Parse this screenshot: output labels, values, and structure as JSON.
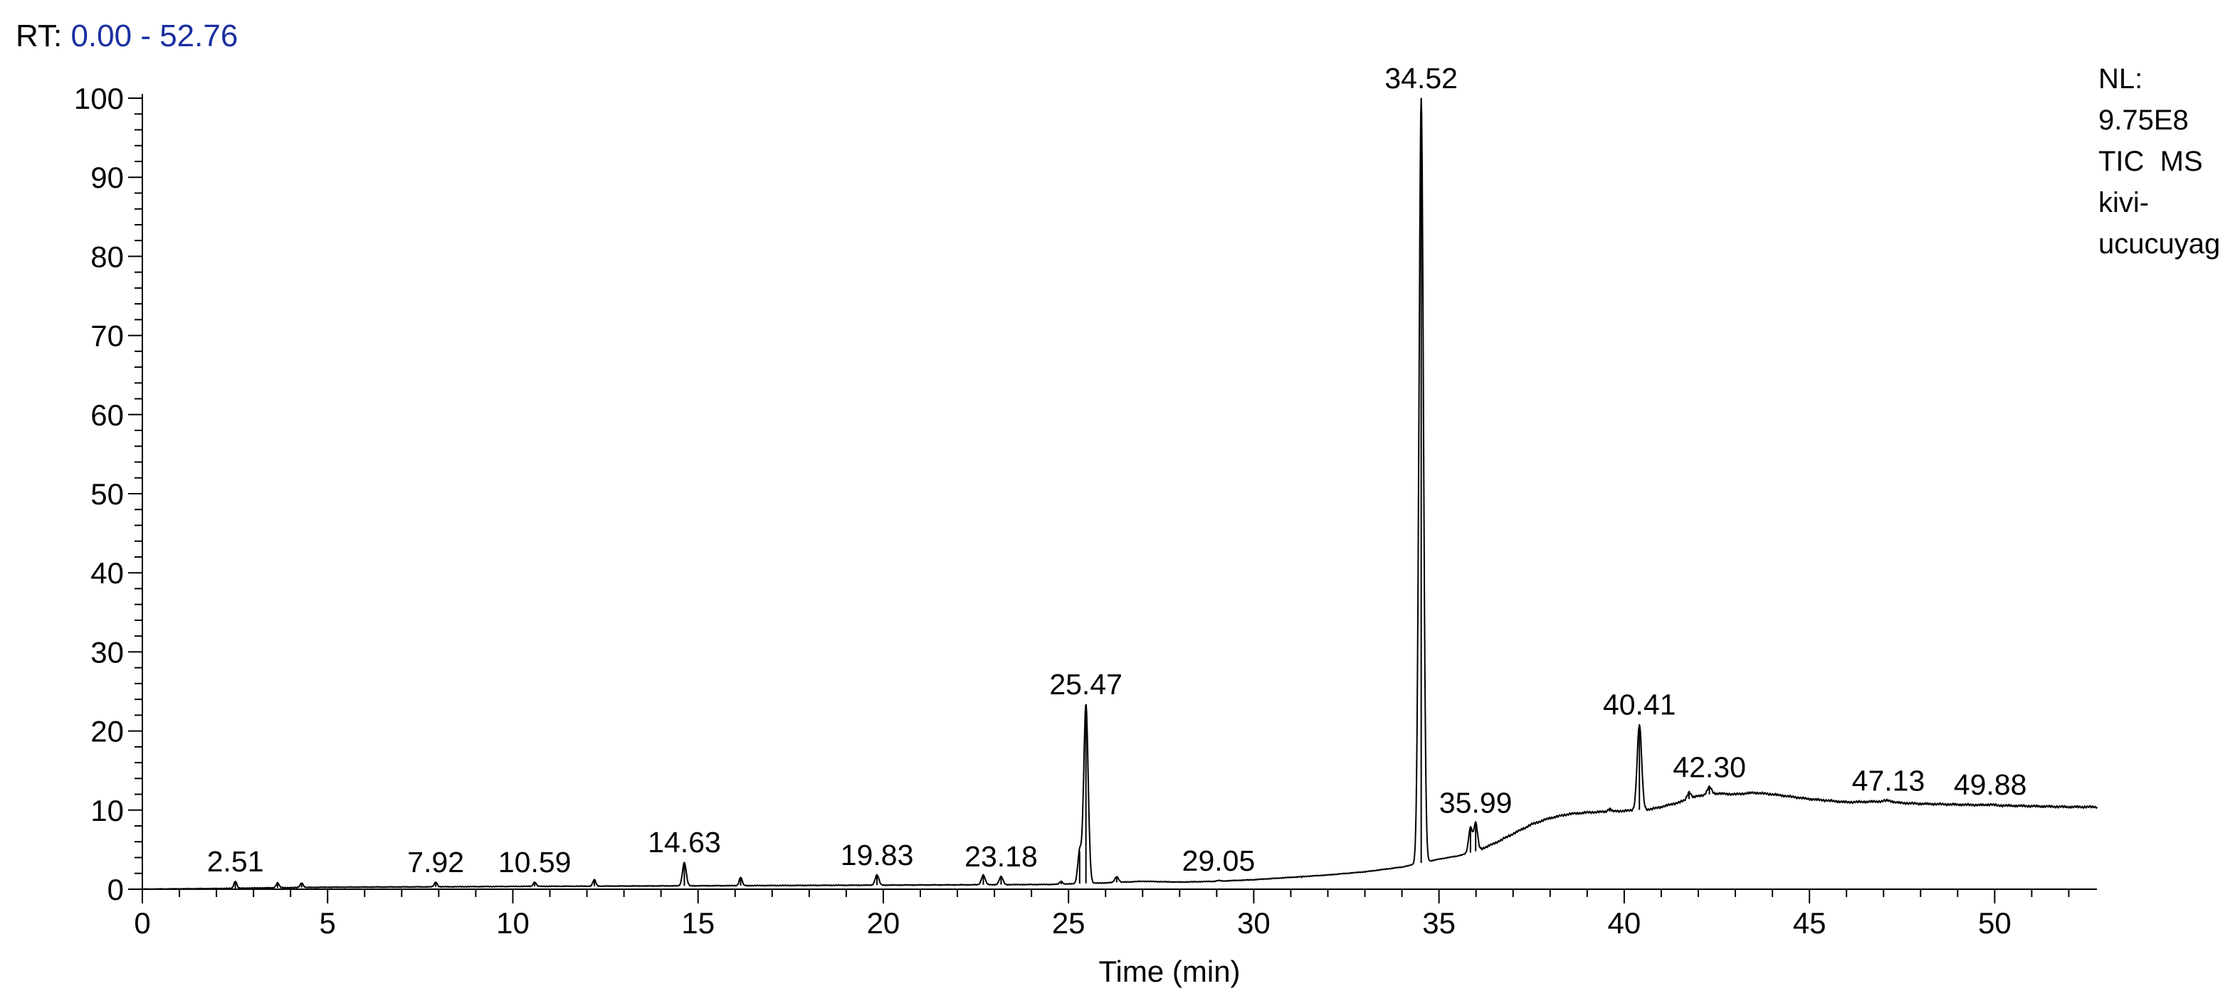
{
  "header": {
    "rt_label": "RT:",
    "rt_range": "0.00 - 52.76",
    "rt_range_color": "#1a2fa0"
  },
  "info": {
    "nl_label": "NL:",
    "nl_value": "9.75E8",
    "scan_filter": "TIC  MS",
    "sample_line1": "kivi-",
    "sample_line2": "ucucuyag"
  },
  "chart_data": {
    "type": "line",
    "title": "",
    "xlabel": "Time (min)",
    "ylabel": "",
    "xlim": [
      0,
      52.76
    ],
    "ylim": [
      0,
      100
    ],
    "x_ticks": [
      0,
      5,
      10,
      15,
      20,
      25,
      30,
      35,
      40,
      45,
      50
    ],
    "y_ticks": [
      0,
      10,
      20,
      30,
      40,
      50,
      60,
      70,
      80,
      90,
      100
    ],
    "grid": false,
    "line_color": "#000000",
    "baseline": [
      [
        0,
        0
      ],
      [
        2.4,
        0.1
      ],
      [
        3.0,
        0.15
      ],
      [
        4.0,
        0.2
      ],
      [
        5.0,
        0.25
      ],
      [
        8.0,
        0.3
      ],
      [
        10.0,
        0.35
      ],
      [
        13.0,
        0.4
      ],
      [
        16.0,
        0.45
      ],
      [
        19.0,
        0.5
      ],
      [
        22.0,
        0.55
      ],
      [
        24.5,
        0.6
      ],
      [
        26.0,
        0.8
      ],
      [
        27.0,
        1.0
      ],
      [
        28.0,
        0.9
      ],
      [
        29.0,
        1.0
      ],
      [
        30.0,
        1.2
      ],
      [
        31.0,
        1.5
      ],
      [
        32.0,
        1.8
      ],
      [
        33.0,
        2.2
      ],
      [
        34.0,
        2.8
      ],
      [
        34.4,
        3.2
      ],
      [
        35.0,
        3.8
      ],
      [
        35.5,
        4.2
      ],
      [
        36.0,
        4.8
      ],
      [
        36.5,
        5.8
      ],
      [
        37.0,
        7.0
      ],
      [
        37.5,
        8.2
      ],
      [
        38.0,
        9.0
      ],
      [
        38.5,
        9.5
      ],
      [
        39.0,
        9.7
      ],
      [
        39.5,
        9.8
      ],
      [
        40.0,
        9.9
      ],
      [
        40.3,
        10.0
      ],
      [
        40.7,
        10.1
      ],
      [
        41.0,
        10.4
      ],
      [
        41.5,
        11.0
      ],
      [
        42.0,
        11.8
      ],
      [
        42.5,
        12.1
      ],
      [
        43.0,
        12.0
      ],
      [
        43.5,
        12.2
      ],
      [
        44.0,
        12.0
      ],
      [
        45.0,
        11.4
      ],
      [
        46.0,
        11.0
      ],
      [
        47.0,
        11.1
      ],
      [
        47.5,
        10.9
      ],
      [
        48.0,
        10.8
      ],
      [
        49.0,
        10.7
      ],
      [
        50.0,
        10.6
      ],
      [
        51.0,
        10.5
      ],
      [
        52.0,
        10.4
      ],
      [
        52.76,
        10.4
      ]
    ],
    "peaks": [
      {
        "rt": 2.51,
        "height": 1.0,
        "width": 0.04,
        "label": "2.51"
      },
      {
        "rt": 3.65,
        "height": 0.8,
        "width": 0.04,
        "label": ""
      },
      {
        "rt": 4.3,
        "height": 0.8,
        "width": 0.04,
        "label": ""
      },
      {
        "rt": 7.92,
        "height": 0.9,
        "width": 0.04,
        "label": "7.92"
      },
      {
        "rt": 10.59,
        "height": 0.9,
        "width": 0.04,
        "label": "10.59"
      },
      {
        "rt": 12.2,
        "height": 1.2,
        "width": 0.04,
        "label": ""
      },
      {
        "rt": 14.63,
        "height": 3.4,
        "width": 0.05,
        "label": "14.63"
      },
      {
        "rt": 16.15,
        "height": 1.5,
        "width": 0.04,
        "label": ""
      },
      {
        "rt": 19.83,
        "height": 1.8,
        "width": 0.05,
        "label": "19.83"
      },
      {
        "rt": 22.7,
        "height": 1.8,
        "width": 0.05,
        "label": ""
      },
      {
        "rt": 23.18,
        "height": 1.6,
        "width": 0.05,
        "label": "23.18"
      },
      {
        "rt": 24.8,
        "height": 1.0,
        "width": 0.04,
        "label": ""
      },
      {
        "rt": 25.3,
        "height": 4.8,
        "width": 0.05,
        "label": ""
      },
      {
        "rt": 25.47,
        "height": 23.4,
        "width": 0.06,
        "label": "25.47"
      },
      {
        "rt": 26.3,
        "height": 1.6,
        "width": 0.05,
        "label": ""
      },
      {
        "rt": 29.05,
        "height": 1.1,
        "width": 0.05,
        "label": "29.05"
      },
      {
        "rt": 31.3,
        "height": 1.4,
        "width": 0.04,
        "label": ""
      },
      {
        "rt": 34.52,
        "height": 100,
        "width": 0.06,
        "label": "34.52"
      },
      {
        "rt": 35.85,
        "height": 7.8,
        "width": 0.05,
        "label": ""
      },
      {
        "rt": 35.99,
        "height": 8.4,
        "width": 0.05,
        "label": "35.99"
      },
      {
        "rt": 39.6,
        "height": 10.2,
        "width": 0.04,
        "label": ""
      },
      {
        "rt": 40.41,
        "height": 20.8,
        "width": 0.06,
        "label": "40.41"
      },
      {
        "rt": 41.75,
        "height": 12.3,
        "width": 0.05,
        "label": ""
      },
      {
        "rt": 42.3,
        "height": 12.9,
        "width": 0.06,
        "label": "42.30"
      },
      {
        "rt": 47.13,
        "height": 11.2,
        "width": 0.1,
        "label": "47.13"
      },
      {
        "rt": 49.88,
        "height": 10.7,
        "width": 0.1,
        "label": "49.88"
      }
    ]
  }
}
